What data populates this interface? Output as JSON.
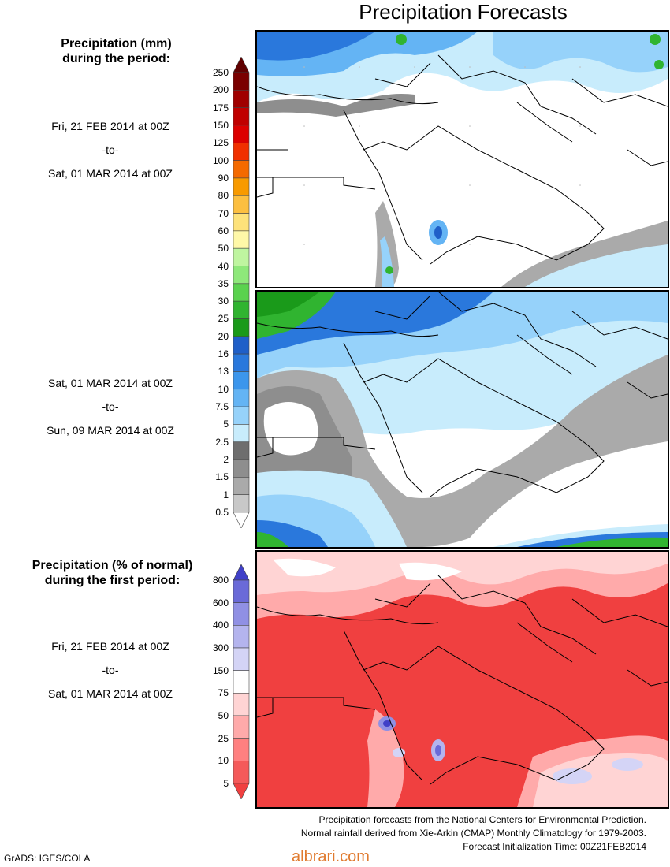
{
  "title": "Precipitation Forecasts",
  "section1": {
    "heading_line1": "Precipitation (mm)",
    "heading_line2": "during the period:",
    "period1": {
      "from": "Fri, 21 FEB 2014 at 00Z",
      "sep": "-to-",
      "to": "Sat, 01 MAR 2014 at 00Z"
    },
    "period2": {
      "from": "Sat, 01 MAR 2014 at 00Z",
      "sep": "-to-",
      "to": "Sun, 09 MAR 2014 at 00Z"
    },
    "scale_labels": [
      "250",
      "200",
      "175",
      "150",
      "125",
      "100",
      "90",
      "80",
      "70",
      "60",
      "50",
      "40",
      "35",
      "30",
      "25",
      "20",
      "16",
      "13",
      "10",
      "7.5",
      "5",
      "2.5",
      "2",
      "1.5",
      "1",
      "0.5"
    ],
    "scale_colors": [
      "#600000",
      "#7a0000",
      "#a00000",
      "#c00000",
      "#dc0000",
      "#f03000",
      "#f46a00",
      "#f89a00",
      "#fcbf40",
      "#fde27a",
      "#fff8a8",
      "#bff5a0",
      "#8ee87a",
      "#5ad24e",
      "#30b430",
      "#1a9a1a",
      "#1f5fc8",
      "#2a78dc",
      "#3c96ec",
      "#64b4f4",
      "#96d2fa",
      "#c8ecfc",
      "#6e6e6e",
      "#8e8e8e",
      "#aaaaaa",
      "#c8c8c8",
      "#ffffff"
    ]
  },
  "section2": {
    "heading_line1": "Precipitation (% of normal)",
    "heading_line2": "during the first period:",
    "period": {
      "from": "Fri, 21 FEB 2014 at 00Z",
      "sep": "-to-",
      "to": "Sat, 01 MAR 2014 at 00Z"
    },
    "scale_labels": [
      "800",
      "600",
      "400",
      "300",
      "150",
      "75",
      "50",
      "25",
      "10",
      "5"
    ],
    "scale_colors": [
      "#4040c8",
      "#6a6ad8",
      "#9090e4",
      "#b4b4ee",
      "#d4d4f6",
      "#ffffff",
      "#ffd4d4",
      "#ffaaaa",
      "#ff8080",
      "#f45a5a",
      "#f04040"
    ]
  },
  "footer": {
    "line1": "Precipitation forecasts from the National Centers for Environmental Prediction.",
    "line2": "Normal rainfall derived from Xie-Arkin (CMAP) Monthly Climatology for 1979-2003.",
    "line3": "Forecast Initialization Time: 00Z21FEB2014"
  },
  "grads_credit": "GrADS: IGES/COLA",
  "watermark": "albrari.com"
}
